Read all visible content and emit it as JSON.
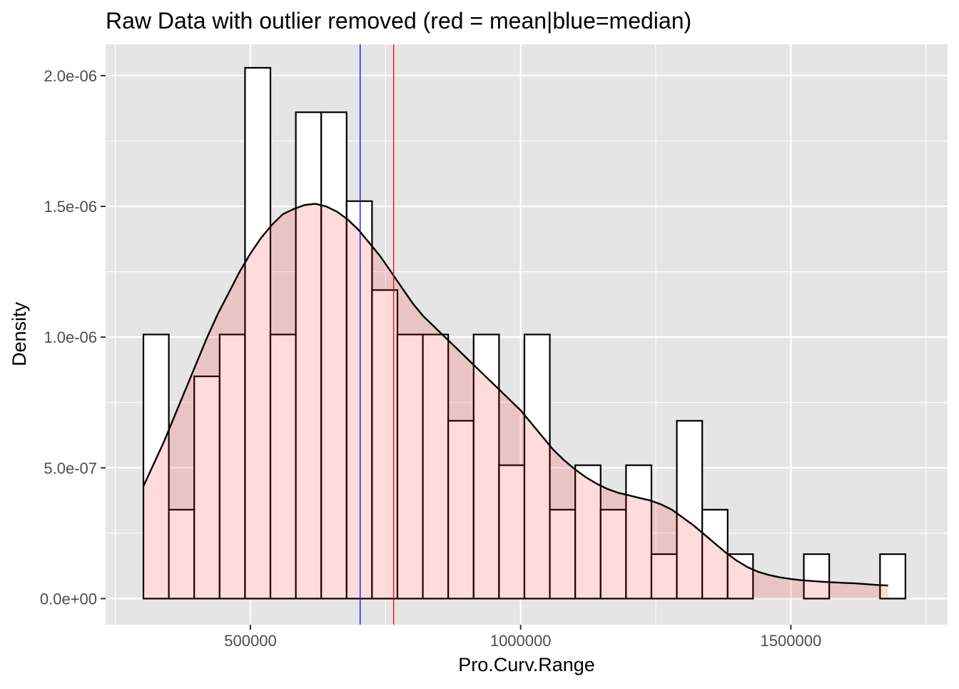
{
  "chart_data": {
    "type": "bar",
    "title": "Raw Data with outlier removed (red = mean|blue=median)",
    "xlabel": "Pro.Curv.Range",
    "ylabel": "Density",
    "xlim": [
      232000,
      1790000
    ],
    "ylim": [
      -1e-07,
      2.12e-06
    ],
    "x_ticks": [
      500000,
      1000000,
      1500000
    ],
    "x_tick_labels": [
      "500000",
      "1000000",
      "1500000"
    ],
    "y_ticks": [
      0,
      5e-07,
      1e-06,
      1.5e-06,
      2e-06
    ],
    "y_tick_labels": [
      "0.0e+00",
      "5.0e-07",
      "1.0e-06",
      "1.5e-06",
      "2.0e-06"
    ],
    "grid": true,
    "bin_start": 302000,
    "bin_width": 47000,
    "series": [
      {
        "values": [
          1.01e-06,
          3.4e-07,
          8.5e-07,
          1.01e-06,
          2.03e-06,
          1.01e-06,
          1.86e-06,
          1.86e-06,
          1.52e-06,
          1.18e-06,
          1.01e-06,
          1.01e-06,
          6.8e-07,
          1.01e-06,
          5.1e-07,
          1.01e-06,
          3.4e-07,
          5.1e-07,
          3.4e-07,
          5.1e-07,
          1.7e-07,
          6.8e-07,
          3.4e-07,
          1.7e-07,
          0,
          0,
          1.7e-07,
          0,
          0,
          1.7e-07
        ]
      },
      {
        "x": [
          302000,
          320000,
          340000,
          360000,
          380000,
          400000,
          420000,
          440000,
          460000,
          480000,
          500000,
          520000,
          540000,
          560000,
          580000,
          600000,
          620000,
          640000,
          660000,
          680000,
          700000,
          720000,
          740000,
          760000,
          780000,
          800000,
          820000,
          840000,
          860000,
          880000,
          900000,
          920000,
          940000,
          960000,
          980000,
          1000000,
          1020000,
          1040000,
          1060000,
          1080000,
          1100000,
          1120000,
          1140000,
          1160000,
          1180000,
          1200000,
          1220000,
          1240000,
          1260000,
          1280000,
          1300000,
          1320000,
          1340000,
          1360000,
          1380000,
          1400000,
          1420000,
          1440000,
          1460000,
          1480000,
          1500000,
          1520000,
          1540000,
          1560000,
          1580000,
          1600000,
          1620000,
          1640000,
          1660000,
          1680000
        ],
        "y": [
          4.3e-07,
          5.1e-07,
          6e-07,
          7e-07,
          8e-07,
          9e-07,
          1e-06,
          1.09e-06,
          1.17e-06,
          1.25e-06,
          1.32e-06,
          1.38e-06,
          1.43e-06,
          1.47e-06,
          1.49e-06,
          1.505e-06,
          1.51e-06,
          1.5e-06,
          1.48e-06,
          1.45e-06,
          1.41e-06,
          1.36e-06,
          1.31e-06,
          1.25e-06,
          1.19e-06,
          1.13e-06,
          1.08e-06,
          1.04e-06,
          1e-06,
          9.6e-07,
          9.2e-07,
          8.8e-07,
          8.4e-07,
          8e-07,
          7.6e-07,
          7.2e-07,
          6.7e-07,
          6.2e-07,
          5.7e-07,
          5.3e-07,
          4.95e-07,
          4.65e-07,
          4.4e-07,
          4.2e-07,
          4.05e-07,
          3.95e-07,
          3.85e-07,
          3.75e-07,
          3.6e-07,
          3.4e-07,
          3.1e-07,
          2.8e-07,
          2.45e-07,
          2.1e-07,
          1.75e-07,
          1.45e-07,
          1.2e-07,
          1.02e-07,
          9e-08,
          8.1e-08,
          7.5e-08,
          7e-08,
          6.7e-08,
          6.4e-08,
          6.2e-08,
          6e-08,
          5.8e-08,
          5.5e-08,
          5.2e-08,
          5e-08
        ]
      }
    ],
    "vlines": [
      {
        "x": 703000,
        "color": "#0000FF"
      },
      {
        "x": 765000,
        "color": "#FF0000"
      }
    ],
    "colors": {
      "panel": "#E5E5E5",
      "grid": "#FFFFFF",
      "bar_fill": "#FFFFFF",
      "bar_stroke": "#000000",
      "density_fill": "#FF0000",
      "density_fill_opacity": 0.14,
      "density_line": "#000000",
      "text": "#000000",
      "tick_text": "#4D4D4D"
    }
  }
}
